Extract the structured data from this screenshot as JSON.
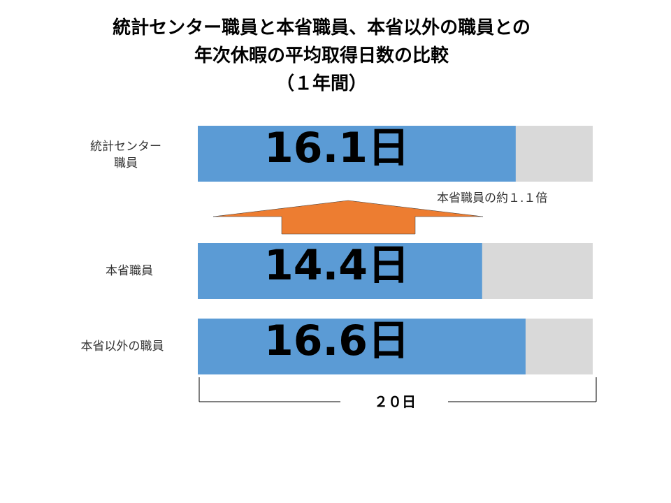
{
  "chart_data": {
    "type": "bar",
    "title_lines": [
      "統計センター職員と本省職員、本省以外の職員との",
      "年次休暇の平均取得日数の比較",
      "（１年間）"
    ],
    "categories": [
      "統計センター職員",
      "本省職員",
      "本省以外の職員"
    ],
    "values": [
      16.1,
      14.4,
      16.6
    ],
    "value_labels": [
      "16.1日",
      "14.4日",
      "16.6日"
    ],
    "color": "#5b9bd5",
    "track_color": "#d9d9d9",
    "arrow_color": "#ed7d31",
    "xlim": [
      0,
      20
    ],
    "scale_label": "２０日",
    "annotation": "本省職員の約１.１倍"
  }
}
